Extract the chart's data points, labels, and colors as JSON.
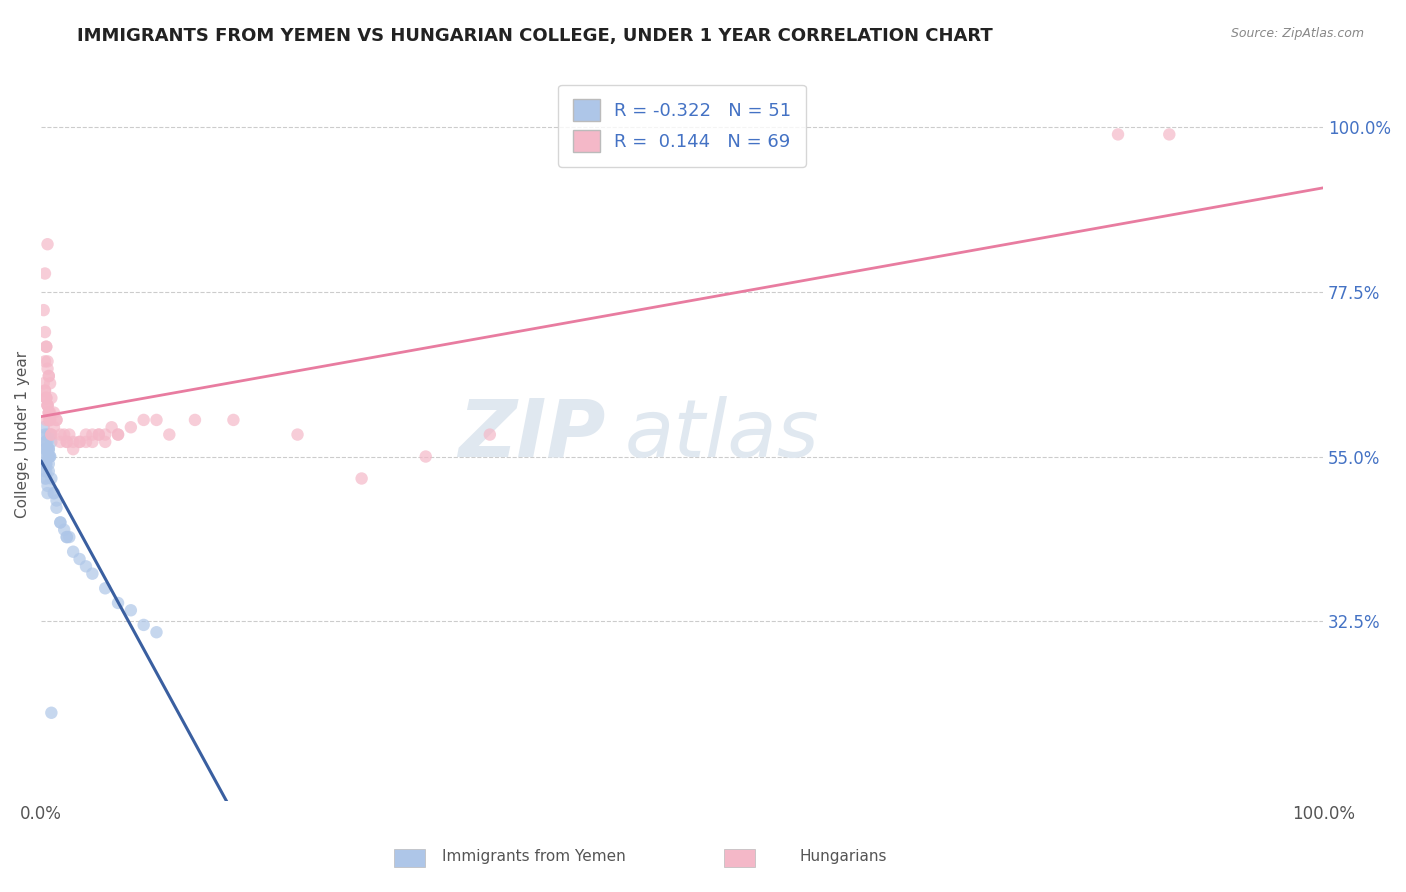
{
  "title": "IMMIGRANTS FROM YEMEN VS HUNGARIAN COLLEGE, UNDER 1 YEAR CORRELATION CHART",
  "source": "Source: ZipAtlas.com",
  "ylabel": "College, Under 1 year",
  "xlim": [
    0.0,
    1.0
  ],
  "ylim": [
    0.08,
    1.08
  ],
  "xtick_positions": [
    0.0,
    1.0
  ],
  "xtick_labels": [
    "0.0%",
    "100.0%"
  ],
  "ytick_values_right": [
    0.325,
    0.55,
    0.775,
    1.0
  ],
  "ytick_labels_right": [
    "32.5%",
    "55.0%",
    "77.5%",
    "100.0%"
  ],
  "blue_R": -0.322,
  "blue_N": 51,
  "pink_R": 0.144,
  "pink_N": 69,
  "blue_color": "#aec6e8",
  "pink_color": "#f4b8c8",
  "blue_line_color": "#3a5fa0",
  "pink_line_color": "#e87ca0",
  "gray_dash_color": "#bbbbbb",
  "blue_scatter": [
    [
      0.004,
      0.54
    ],
    [
      0.005,
      0.57
    ],
    [
      0.003,
      0.52
    ],
    [
      0.006,
      0.56
    ],
    [
      0.002,
      0.55
    ],
    [
      0.007,
      0.58
    ],
    [
      0.004,
      0.53
    ],
    [
      0.005,
      0.5
    ],
    [
      0.006,
      0.55
    ],
    [
      0.008,
      0.57
    ],
    [
      0.003,
      0.54
    ],
    [
      0.005,
      0.56
    ],
    [
      0.004,
      0.52
    ],
    [
      0.003,
      0.58
    ],
    [
      0.006,
      0.53
    ],
    [
      0.007,
      0.55
    ],
    [
      0.005,
      0.51
    ],
    [
      0.004,
      0.54
    ],
    [
      0.003,
      0.53
    ],
    [
      0.006,
      0.55
    ],
    [
      0.01,
      0.5
    ],
    [
      0.012,
      0.49
    ],
    [
      0.015,
      0.46
    ],
    [
      0.018,
      0.45
    ],
    [
      0.02,
      0.44
    ],
    [
      0.022,
      0.44
    ],
    [
      0.025,
      0.42
    ],
    [
      0.03,
      0.41
    ],
    [
      0.035,
      0.4
    ],
    [
      0.04,
      0.39
    ],
    [
      0.003,
      0.56
    ],
    [
      0.004,
      0.57
    ],
    [
      0.005,
      0.58
    ],
    [
      0.006,
      0.56
    ],
    [
      0.007,
      0.55
    ],
    [
      0.05,
      0.37
    ],
    [
      0.06,
      0.35
    ],
    [
      0.07,
      0.34
    ],
    [
      0.08,
      0.32
    ],
    [
      0.09,
      0.31
    ],
    [
      0.002,
      0.59
    ],
    [
      0.003,
      0.57
    ],
    [
      0.004,
      0.56
    ],
    [
      0.005,
      0.55
    ],
    [
      0.006,
      0.54
    ],
    [
      0.008,
      0.52
    ],
    [
      0.01,
      0.5
    ],
    [
      0.012,
      0.48
    ],
    [
      0.015,
      0.46
    ],
    [
      0.02,
      0.44
    ],
    [
      0.008,
      0.2
    ]
  ],
  "pink_scatter": [
    [
      0.004,
      0.6
    ],
    [
      0.005,
      0.62
    ],
    [
      0.003,
      0.64
    ],
    [
      0.006,
      0.61
    ],
    [
      0.002,
      0.65
    ],
    [
      0.008,
      0.58
    ],
    [
      0.004,
      0.63
    ],
    [
      0.006,
      0.6
    ],
    [
      0.007,
      0.61
    ],
    [
      0.01,
      0.59
    ],
    [
      0.005,
      0.62
    ],
    [
      0.003,
      0.64
    ],
    [
      0.006,
      0.61
    ],
    [
      0.004,
      0.63
    ],
    [
      0.007,
      0.6
    ],
    [
      0.005,
      0.62
    ],
    [
      0.008,
      0.58
    ],
    [
      0.006,
      0.61
    ],
    [
      0.004,
      0.63
    ],
    [
      0.007,
      0.6
    ],
    [
      0.015,
      0.57
    ],
    [
      0.018,
      0.58
    ],
    [
      0.02,
      0.57
    ],
    [
      0.025,
      0.56
    ],
    [
      0.022,
      0.58
    ],
    [
      0.03,
      0.57
    ],
    [
      0.035,
      0.58
    ],
    [
      0.04,
      0.57
    ],
    [
      0.045,
      0.58
    ],
    [
      0.012,
      0.6
    ],
    [
      0.003,
      0.68
    ],
    [
      0.004,
      0.7
    ],
    [
      0.005,
      0.67
    ],
    [
      0.006,
      0.66
    ],
    [
      0.007,
      0.65
    ],
    [
      0.05,
      0.58
    ],
    [
      0.055,
      0.59
    ],
    [
      0.06,
      0.58
    ],
    [
      0.07,
      0.59
    ],
    [
      0.08,
      0.6
    ],
    [
      0.002,
      0.75
    ],
    [
      0.003,
      0.72
    ],
    [
      0.004,
      0.7
    ],
    [
      0.005,
      0.68
    ],
    [
      0.006,
      0.66
    ],
    [
      0.008,
      0.63
    ],
    [
      0.01,
      0.61
    ],
    [
      0.012,
      0.6
    ],
    [
      0.015,
      0.58
    ],
    [
      0.02,
      0.57
    ],
    [
      0.025,
      0.57
    ],
    [
      0.03,
      0.57
    ],
    [
      0.035,
      0.57
    ],
    [
      0.04,
      0.58
    ],
    [
      0.045,
      0.58
    ],
    [
      0.05,
      0.57
    ],
    [
      0.06,
      0.58
    ],
    [
      0.09,
      0.6
    ],
    [
      0.1,
      0.58
    ],
    [
      0.12,
      0.6
    ],
    [
      0.003,
      0.8
    ],
    [
      0.005,
      0.84
    ],
    [
      0.84,
      0.99
    ],
    [
      0.88,
      0.99
    ],
    [
      0.15,
      0.6
    ],
    [
      0.2,
      0.58
    ],
    [
      0.25,
      0.52
    ],
    [
      0.3,
      0.55
    ],
    [
      0.35,
      0.58
    ]
  ],
  "watermark_zip": "ZIP",
  "watermark_atlas": "atlas",
  "background_color": "#ffffff",
  "grid_color": "#cccccc",
  "title_color": "#222222",
  "axis_label_color": "#4472c4"
}
